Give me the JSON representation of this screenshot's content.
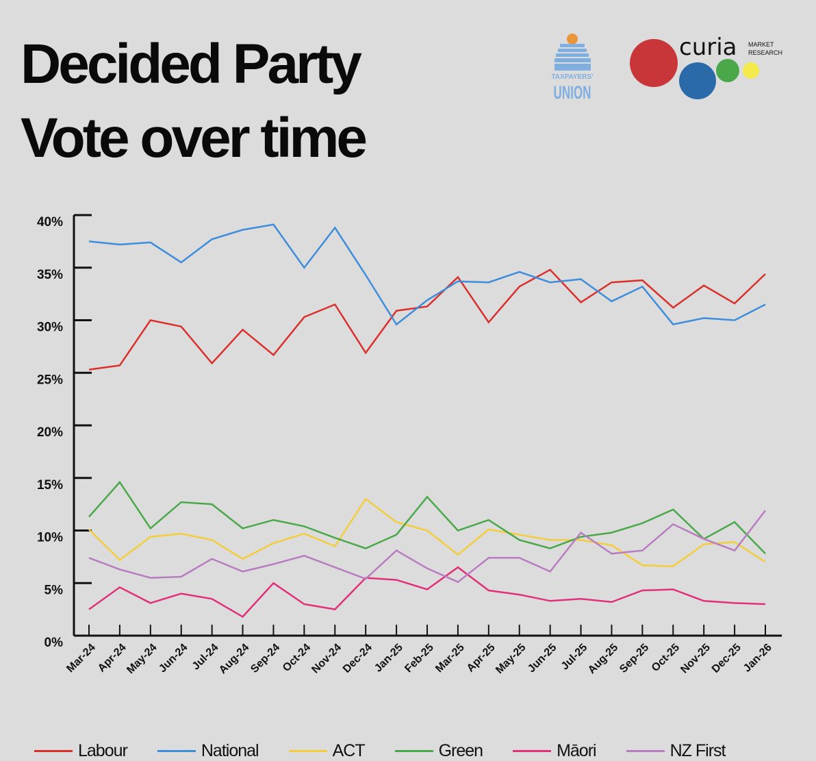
{
  "title_lines": [
    "Decided Party",
    "Vote over time"
  ],
  "logos": {
    "taxpayers_union": [
      "TAXPAYERS'",
      "UNION"
    ],
    "curia": {
      "name": "curia",
      "tagline": [
        "MARKET",
        "RESEARCH"
      ]
    }
  },
  "chart_data": {
    "type": "line",
    "title": "Decided Party Vote over time",
    "xlabel": "",
    "ylabel": "",
    "ylim": [
      0,
      40
    ],
    "yticks": [
      "0%",
      "5%",
      "10%",
      "15%",
      "20%",
      "25%",
      "30%",
      "35%",
      "40%"
    ],
    "grid": false,
    "legend": "bottom",
    "categories": [
      "Mar-24",
      "Apr-24",
      "May-24",
      "Jun-24",
      "Jul-24",
      "Aug-24",
      "Sep-24",
      "Oct-24",
      "Nov-24",
      "Dec-24",
      "Jan-25",
      "Feb-25",
      "Mar-25",
      "Apr-25",
      "May-25",
      "Jun-25",
      "Jul-25",
      "Aug-25",
      "Sep-25",
      "Oct-25",
      "Nov-25",
      "Dec-25",
      "Jan-26"
    ],
    "series": [
      {
        "name": "Labour",
        "color": "#d9302c",
        "values": [
          25.3,
          25.7,
          30.0,
          29.4,
          25.9,
          29.1,
          26.7,
          30.3,
          31.5,
          26.9,
          30.9,
          31.3,
          34.1,
          29.8,
          33.2,
          34.8,
          31.7,
          33.6,
          33.8,
          31.2,
          33.3,
          31.6,
          34.4
        ]
      },
      {
        "name": "National",
        "color": "#3d8ddb",
        "values": [
          37.5,
          37.2,
          37.4,
          35.5,
          37.7,
          38.6,
          39.1,
          35.0,
          38.8,
          34.3,
          29.6,
          31.9,
          33.7,
          33.6,
          34.6,
          33.6,
          33.9,
          31.8,
          33.2,
          29.6,
          30.2,
          30.0,
          31.5
        ]
      },
      {
        "name": "ACT",
        "color": "#f3cd3c",
        "values": [
          10.1,
          7.2,
          9.4,
          9.7,
          9.1,
          7.3,
          8.8,
          9.7,
          8.5,
          13.0,
          10.8,
          10.0,
          7.7,
          10.1,
          9.6,
          9.1,
          9.1,
          8.6,
          6.7,
          6.6,
          8.7,
          8.9,
          7.0
        ]
      },
      {
        "name": "Green",
        "color": "#4aa84a",
        "values": [
          11.3,
          14.6,
          10.2,
          12.7,
          12.5,
          10.2,
          11.0,
          10.4,
          9.3,
          8.3,
          9.6,
          13.2,
          10.0,
          11.0,
          9.1,
          8.3,
          9.4,
          9.8,
          10.7,
          12.0,
          9.2,
          10.8,
          7.8
        ]
      },
      {
        "name": "Māori",
        "color": "#e0307a",
        "values": [
          2.5,
          4.6,
          3.1,
          4.0,
          3.5,
          1.8,
          5.0,
          3.0,
          2.5,
          5.5,
          5.3,
          4.4,
          6.5,
          4.3,
          3.9,
          3.3,
          3.5,
          3.2,
          4.3,
          4.4,
          3.3,
          3.1,
          3.0
        ]
      },
      {
        "name": "NZ First",
        "color": "#b87cc0",
        "values": [
          7.4,
          6.3,
          5.5,
          5.6,
          7.3,
          6.1,
          6.8,
          7.6,
          6.5,
          5.4,
          8.1,
          6.4,
          5.1,
          7.4,
          7.4,
          6.1,
          9.8,
          7.8,
          8.1,
          10.6,
          9.2,
          8.1,
          11.9
        ]
      }
    ]
  }
}
